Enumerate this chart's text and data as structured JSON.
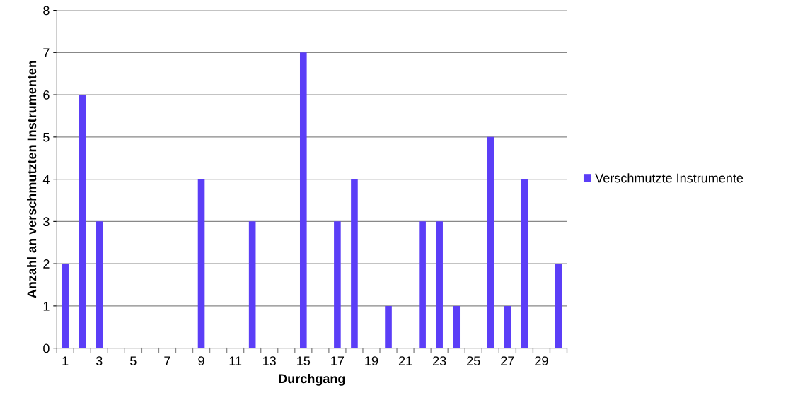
{
  "chart_data": {
    "type": "bar",
    "xlabel": "Durchgang",
    "ylabel": "Anzahl an verschmutzten Instrumenten",
    "categories": [
      "1",
      null,
      "3",
      null,
      "5",
      null,
      "7",
      null,
      "9",
      null,
      "11",
      null,
      "13",
      null,
      "15",
      null,
      "17",
      null,
      "19",
      null,
      "21",
      null,
      "23",
      null,
      "25",
      null,
      "27",
      null,
      "29",
      null
    ],
    "series": [
      {
        "name": "Verschmutzte Instrumente",
        "color": "#5b3ef7",
        "values": [
          2,
          6,
          3,
          0,
          0,
          0,
          0,
          0,
          4,
          0,
          0,
          3,
          0,
          0,
          7,
          0,
          3,
          4,
          0,
          1,
          0,
          3,
          3,
          1,
          0,
          5,
          1,
          4,
          0,
          2
        ]
      }
    ],
    "ylim": [
      0,
      8
    ],
    "yticks": [
      0,
      1,
      2,
      3,
      4,
      5,
      6,
      7,
      8
    ],
    "grid": "y",
    "legend": "right"
  }
}
